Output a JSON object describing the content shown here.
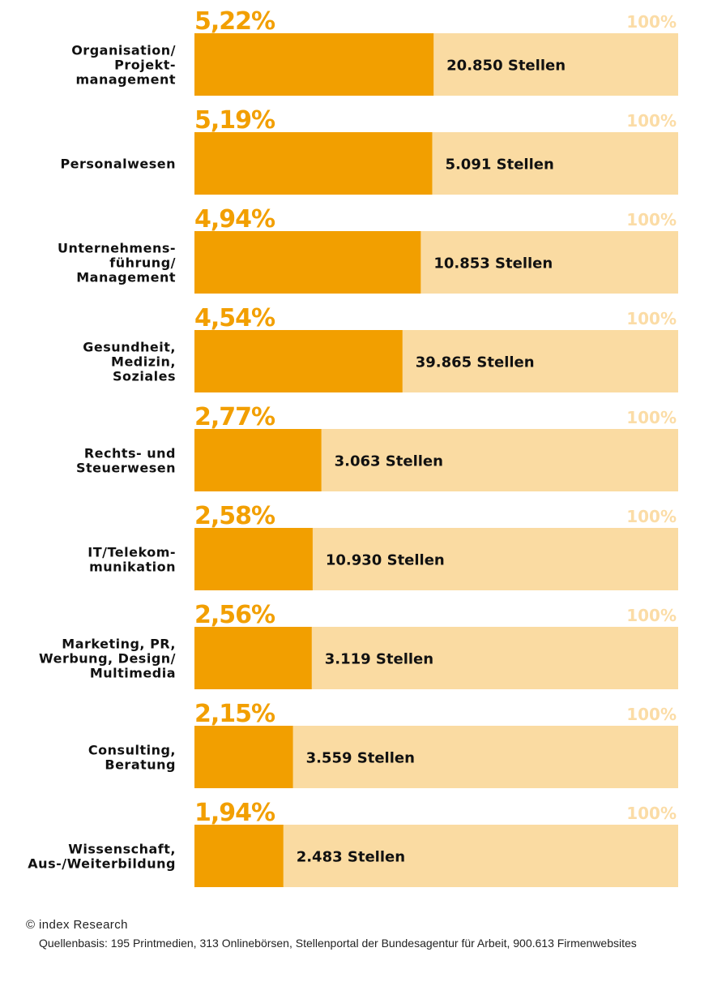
{
  "colors": {
    "accent": "#f29f00",
    "track": "#fadba2",
    "hundred_label": "#fbdca6",
    "text": "#111111"
  },
  "chart_data": {
    "type": "bar",
    "orientation": "horizontal",
    "max_label": "100%",
    "xlim": [
      0,
      100
    ],
    "categories": [
      [
        "Organisation/",
        "Projekt-",
        "management"
      ],
      [
        "Personalwesen"
      ],
      [
        "Unternehmens-",
        "führung/",
        "Management"
      ],
      [
        "Gesundheit,",
        "Medizin,",
        "Soziales"
      ],
      [
        "Rechts- und",
        "Steuerwesen"
      ],
      [
        "IT/Telekom-",
        "munikation"
      ],
      [
        "Marketing, PR,",
        "Werbung, Design/",
        "Multimedia"
      ],
      [
        "Consulting,",
        "Beratung"
      ],
      [
        "Wissenschaft,",
        "Aus-/Weiterbildung"
      ]
    ],
    "values": [
      5.22,
      5.19,
      4.94,
      4.54,
      2.77,
      2.58,
      2.56,
      2.15,
      1.94
    ],
    "value_labels": [
      "5,22%",
      "5,19%",
      "4,94%",
      "4,54%",
      "2,77%",
      "2,58%",
      "2,56%",
      "2,15%",
      "1,94%"
    ],
    "count_labels": [
      "20.850 Stellen",
      "5.091 Stellen",
      "10.853 Stellen",
      "39.865 Stellen",
      "3.063 Stellen",
      "10.930 Stellen",
      "3.119 Stellen",
      "3.559 Stellen",
      "2.483 Stellen"
    ]
  },
  "footer": {
    "copyright": "© index Research",
    "source": "Quellenbasis: 195 Printmedien, 313 Onlinebörsen, Stellenportal der Bundesagentur für Arbeit, 900.613 Firmenwebsites"
  }
}
